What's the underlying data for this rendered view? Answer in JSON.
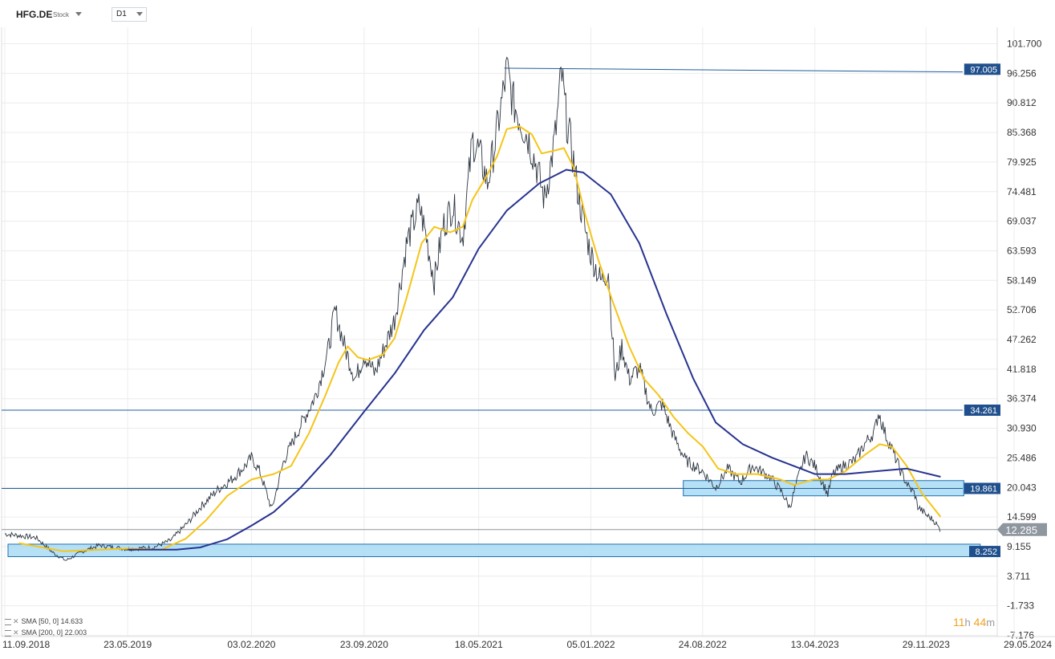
{
  "header": {
    "symbol": "HFG.DE",
    "type": "Stock",
    "timeframe": "D1"
  },
  "legend": [
    {
      "label": "SMA",
      "params": "[50, 0]",
      "value": "14.633"
    },
    {
      "label": "SMA",
      "params": "[200, 0]",
      "value": "22.003"
    }
  ],
  "timer": {
    "hours": "11",
    "h": "h",
    "minutes": "44",
    "m": "m"
  },
  "colors": {
    "price": "#2b3440",
    "sma50": "#f5c518",
    "sma200": "#27338f",
    "level_line": "#1f5e9c",
    "level_tag_bg": "#1f4f8c",
    "zone_fill": "#a9daf5",
    "zone_stroke": "#1f6fb0",
    "current_tag_bg": "#8e969e",
    "current_line": "#8e969e",
    "grid": "#ececec"
  },
  "chart_data": {
    "type": "line",
    "y_ticks": [
      "101.700",
      "96.256",
      "90.812",
      "85.368",
      "79.925",
      "74.481",
      "69.037",
      "63.593",
      "58.149",
      "52.706",
      "47.262",
      "41.818",
      "36.374",
      "30.930",
      "25.486",
      "20.043",
      "14.599",
      "9.155",
      "3.711",
      "-1.733",
      "-7.176"
    ],
    "ylim": [
      -7.176,
      101.7
    ],
    "x_ticks": [
      "11.09.2018",
      "23.05.2019",
      "03.02.2020",
      "23.09.2020",
      "18.05.2021",
      "05.01.2022",
      "24.08.2022",
      "13.04.2023",
      "29.11.2023",
      "29.05.2024"
    ],
    "levels": [
      {
        "label": "97.005",
        "value": 97.005
      },
      {
        "label": "34.261",
        "value": 34.261
      },
      {
        "label": "19.861",
        "value": 19.861
      },
      {
        "label": "8.252",
        "value": 8.252
      }
    ],
    "zones": [
      {
        "from_date": "2022-07-15",
        "to_date": "2024-02-15",
        "low": 18.5,
        "high": 21.3
      },
      {
        "from_date": "2018-09-11",
        "to_date": "2024-03-20",
        "low": 7.3,
        "high": 9.6
      }
    ],
    "current_price": {
      "label": "12.285",
      "value": 12.285
    },
    "series": [
      {
        "name": "HFG.DE",
        "points": [
          [
            "2018-09-11",
            11.5
          ],
          [
            "2018-11-15",
            10.8
          ],
          [
            "2018-12-20",
            8.0
          ],
          [
            "2019-01-15",
            6.6
          ],
          [
            "2019-02-20",
            8.3
          ],
          [
            "2019-03-25",
            9.4
          ],
          [
            "2019-05-23",
            8.7
          ],
          [
            "2019-07-15",
            9.0
          ],
          [
            "2019-08-20",
            10.3
          ],
          [
            "2019-09-25",
            13.6
          ],
          [
            "2019-10-20",
            16.4
          ],
          [
            "2019-11-25",
            19.6
          ],
          [
            "2019-12-25",
            21.6
          ],
          [
            "2020-01-20",
            23.9
          ],
          [
            "2020-02-03",
            25.5
          ],
          [
            "2020-02-20",
            23.0
          ],
          [
            "2020-03-16",
            16.0
          ],
          [
            "2020-04-10",
            25.0
          ],
          [
            "2020-05-15",
            31.5
          ],
          [
            "2020-06-15",
            37.0
          ],
          [
            "2020-07-10",
            45.0
          ],
          [
            "2020-07-25",
            52.6
          ],
          [
            "2020-08-15",
            45.5
          ],
          [
            "2020-09-05",
            40.0
          ],
          [
            "2020-09-23",
            44.5
          ],
          [
            "2020-10-15",
            41.0
          ],
          [
            "2020-11-05",
            46.0
          ],
          [
            "2020-11-25",
            51.0
          ],
          [
            "2020-12-20",
            65.0
          ],
          [
            "2021-01-15",
            72.0
          ],
          [
            "2021-01-30",
            66.0
          ],
          [
            "2021-02-15",
            58.0
          ],
          [
            "2021-03-05",
            68.0
          ],
          [
            "2021-03-25",
            72.0
          ],
          [
            "2021-04-15",
            66.0
          ],
          [
            "2021-05-05",
            84.0
          ],
          [
            "2021-05-18",
            82.0
          ],
          [
            "2021-06-05",
            76.0
          ],
          [
            "2021-06-20",
            83.0
          ],
          [
            "2021-07-10",
            94.0
          ],
          [
            "2021-07-15",
            97.0
          ],
          [
            "2021-07-28",
            91.0
          ],
          [
            "2021-08-15",
            87.0
          ],
          [
            "2021-08-30",
            84.0
          ],
          [
            "2021-09-15",
            79.0
          ],
          [
            "2021-10-01",
            73.0
          ],
          [
            "2021-10-15",
            80.0
          ],
          [
            "2021-10-25",
            86.0
          ],
          [
            "2021-11-05",
            96.5
          ],
          [
            "2021-11-15",
            88.0
          ],
          [
            "2021-11-25",
            83.0
          ],
          [
            "2021-12-10",
            74.0
          ],
          [
            "2021-12-25",
            67.0
          ],
          [
            "2022-01-05",
            63.0
          ],
          [
            "2022-01-25",
            58.0
          ],
          [
            "2022-02-10",
            60.0
          ],
          [
            "2022-02-24",
            40.0
          ],
          [
            "2022-03-10",
            46.0
          ],
          [
            "2022-03-25",
            40.0
          ],
          [
            "2022-04-15",
            42.0
          ],
          [
            "2022-05-10",
            34.0
          ],
          [
            "2022-06-01",
            35.5
          ],
          [
            "2022-06-25",
            29.5
          ],
          [
            "2022-07-20",
            25.0
          ],
          [
            "2022-08-24",
            23.0
          ],
          [
            "2022-09-20",
            20.0
          ],
          [
            "2022-10-15",
            23.5
          ],
          [
            "2022-11-10",
            21.0
          ],
          [
            "2022-12-05",
            24.0
          ],
          [
            "2023-01-10",
            22.0
          ],
          [
            "2023-02-05",
            19.0
          ],
          [
            "2023-02-20",
            16.3
          ],
          [
            "2023-03-10",
            22.0
          ],
          [
            "2023-03-25",
            26.0
          ],
          [
            "2023-04-13",
            24.0
          ],
          [
            "2023-05-10",
            18.8
          ],
          [
            "2023-05-20",
            22.5
          ],
          [
            "2023-06-10",
            24.0
          ],
          [
            "2023-07-05",
            25.0
          ],
          [
            "2023-07-25",
            28.0
          ],
          [
            "2023-08-15",
            30.5
          ],
          [
            "2023-08-23",
            34.0
          ],
          [
            "2023-09-05",
            30.0
          ],
          [
            "2023-09-20",
            27.0
          ],
          [
            "2023-10-10",
            22.5
          ],
          [
            "2023-10-25",
            20.0
          ],
          [
            "2023-11-05",
            19.0
          ],
          [
            "2023-11-12",
            16.5
          ],
          [
            "2023-11-29",
            15.0
          ],
          [
            "2023-12-15",
            14.0
          ],
          [
            "2023-12-25",
            12.6
          ],
          [
            "2023-12-29",
            12.285
          ]
        ]
      },
      {
        "name": "SMA [50, 0]",
        "points": [
          [
            "2018-10-10",
            9.8
          ],
          [
            "2019-01-10",
            8.3
          ],
          [
            "2019-05-23",
            8.8
          ],
          [
            "2019-08-01",
            8.6
          ],
          [
            "2019-09-20",
            10.6
          ],
          [
            "2019-11-01",
            14.0
          ],
          [
            "2019-12-15",
            18.5
          ],
          [
            "2020-02-03",
            21.5
          ],
          [
            "2020-03-20",
            22.5
          ],
          [
            "2020-04-25",
            24.0
          ],
          [
            "2020-06-01",
            30.0
          ],
          [
            "2020-07-05",
            37.0
          ],
          [
            "2020-08-01",
            43.0
          ],
          [
            "2020-08-20",
            46.0
          ],
          [
            "2020-09-10",
            44.0
          ],
          [
            "2020-10-01",
            43.5
          ],
          [
            "2020-11-01",
            44.5
          ],
          [
            "2020-11-25",
            47.5
          ],
          [
            "2020-12-20",
            55.0
          ],
          [
            "2021-01-20",
            65.0
          ],
          [
            "2021-02-15",
            68.0
          ],
          [
            "2021-03-20",
            67.0
          ],
          [
            "2021-04-15",
            68.0
          ],
          [
            "2021-05-05",
            73.0
          ],
          [
            "2021-06-01",
            77.0
          ],
          [
            "2021-06-25",
            81.0
          ],
          [
            "2021-07-15",
            86.0
          ],
          [
            "2021-08-10",
            86.5
          ],
          [
            "2021-09-05",
            85.0
          ],
          [
            "2021-09-25",
            81.5
          ],
          [
            "2021-10-20",
            82.0
          ],
          [
            "2021-11-10",
            82.5
          ],
          [
            "2021-11-30",
            79.0
          ],
          [
            "2021-12-25",
            70.0
          ],
          [
            "2022-01-20",
            62.0
          ],
          [
            "2022-02-20",
            54.0
          ],
          [
            "2022-03-25",
            46.0
          ],
          [
            "2022-04-25",
            40.0
          ],
          [
            "2022-05-25",
            37.0
          ],
          [
            "2022-06-25",
            33.0
          ],
          [
            "2022-07-25",
            30.0
          ],
          [
            "2022-08-25",
            27.5
          ],
          [
            "2022-09-25",
            23.5
          ],
          [
            "2022-11-01",
            22.5
          ],
          [
            "2022-12-15",
            22.5
          ],
          [
            "2023-02-01",
            21.5
          ],
          [
            "2023-03-01",
            20.5
          ],
          [
            "2023-04-10",
            21.5
          ],
          [
            "2023-05-10",
            21.5
          ],
          [
            "2023-06-15",
            23.0
          ],
          [
            "2023-07-25",
            26.0
          ],
          [
            "2023-08-25",
            28.0
          ],
          [
            "2023-09-20",
            27.5
          ],
          [
            "2023-10-20",
            24.0
          ],
          [
            "2023-11-20",
            19.0
          ],
          [
            "2023-12-29",
            14.633
          ]
        ]
      },
      {
        "name": "SMA [200, 0]",
        "points": [
          [
            "2019-05-23",
            8.6
          ],
          [
            "2019-09-01",
            8.6
          ],
          [
            "2019-10-20",
            9.0
          ],
          [
            "2019-12-15",
            10.5
          ],
          [
            "2020-02-03",
            13.0
          ],
          [
            "2020-03-20",
            15.5
          ],
          [
            "2020-05-15",
            20.0
          ],
          [
            "2020-07-15",
            26.0
          ],
          [
            "2020-09-23",
            34.0
          ],
          [
            "2020-11-25",
            41.0
          ],
          [
            "2021-01-25",
            49.0
          ],
          [
            "2021-03-25",
            55.0
          ],
          [
            "2021-05-18",
            64.0
          ],
          [
            "2021-07-15",
            71.0
          ],
          [
            "2021-09-20",
            76.0
          ],
          [
            "2021-11-15",
            78.5
          ],
          [
            "2021-12-20",
            78.0
          ],
          [
            "2022-02-15",
            74.0
          ],
          [
            "2022-04-15",
            65.0
          ],
          [
            "2022-06-10",
            52.0
          ],
          [
            "2022-08-05",
            40.0
          ],
          [
            "2022-09-20",
            32.0
          ],
          [
            "2022-11-15",
            28.0
          ],
          [
            "2023-01-15",
            25.5
          ],
          [
            "2023-04-13",
            22.5
          ],
          [
            "2023-06-15",
            22.5
          ],
          [
            "2023-08-15",
            23.0
          ],
          [
            "2023-10-20",
            23.5
          ],
          [
            "2023-12-29",
            22.003
          ]
        ]
      }
    ]
  }
}
